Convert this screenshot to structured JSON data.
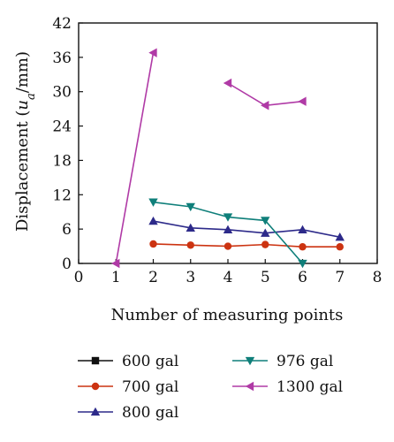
{
  "chart_data": {
    "type": "line",
    "xlabel": "Number of measuring points",
    "ylabel_prefix": "Displacement (",
    "ylabel_var": "u",
    "ylabel_sub": "a",
    "ylabel_suffix": "/mm)",
    "xlim": [
      0,
      8
    ],
    "ylim": [
      0,
      42
    ],
    "xticks": [
      0,
      1,
      2,
      3,
      4,
      5,
      6,
      7,
      8
    ],
    "yticks": [
      0,
      6,
      12,
      18,
      24,
      30,
      36,
      42
    ],
    "xtick_labels": [
      "0",
      "1",
      "2",
      "3",
      "4",
      "5",
      "6",
      "7",
      "8"
    ],
    "ytick_labels": [
      "0",
      "6",
      "12",
      "18",
      "24",
      "30",
      "36",
      "42"
    ],
    "grid": false,
    "legend_position": "bottom",
    "series": [
      {
        "name": "600 gal",
        "color": "#111111",
        "marker": "square",
        "segments": []
      },
      {
        "name": "700 gal",
        "color": "#cc3311",
        "marker": "circle",
        "segments": [
          {
            "x": [
              2,
              3,
              4,
              5,
              6,
              7
            ],
            "y": [
              3.4,
              3.2,
              3.0,
              3.3,
              2.9,
              2.9
            ]
          }
        ]
      },
      {
        "name": "800 gal",
        "color": "#2d2a8a",
        "marker": "triangle-up",
        "segments": [
          {
            "x": [
              2,
              3,
              4,
              5,
              6,
              7
            ],
            "y": [
              7.4,
              6.2,
              5.9,
              5.3,
              5.9,
              4.6
            ]
          }
        ]
      },
      {
        "name": "976 gal",
        "color": "#0f7f7a",
        "marker": "triangle-down",
        "segments": [
          {
            "x": [
              2,
              3,
              4,
              5,
              6
            ],
            "y": [
              10.7,
              9.9,
              8.1,
              7.5,
              0
            ]
          }
        ]
      },
      {
        "name": "1300 gal",
        "color": "#b03aa6",
        "marker": "triangle-left",
        "segments": [
          {
            "x": [
              1,
              2
            ],
            "y": [
              0,
              36.8
            ]
          },
          {
            "x": [
              4,
              5,
              6
            ],
            "y": [
              31.5,
              27.6,
              28.3
            ]
          }
        ]
      }
    ]
  }
}
